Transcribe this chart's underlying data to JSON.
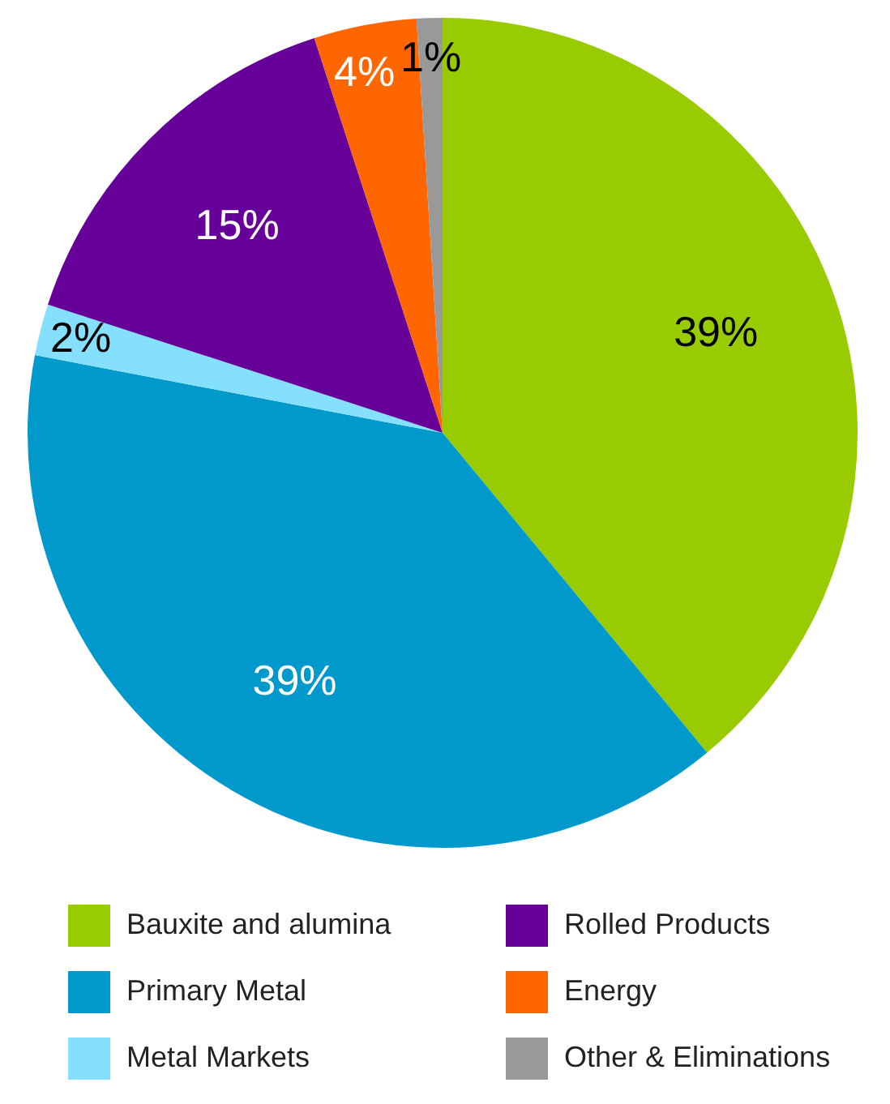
{
  "chart_data": {
    "type": "pie",
    "categories": [
      "Bauxite and alumina",
      "Primary Metal",
      "Metal Markets",
      "Rolled Products",
      "Energy",
      "Other & Eliminations"
    ],
    "values": [
      39,
      39,
      2,
      15,
      4,
      1
    ],
    "colors": [
      "#99cc00",
      "#0099cc",
      "#85dfff",
      "#660099",
      "#ff6600",
      "#999999"
    ],
    "value_labels": [
      "39%",
      "39%",
      "2%",
      "15%",
      "4%",
      "1%"
    ],
    "legend": "bottom"
  }
}
